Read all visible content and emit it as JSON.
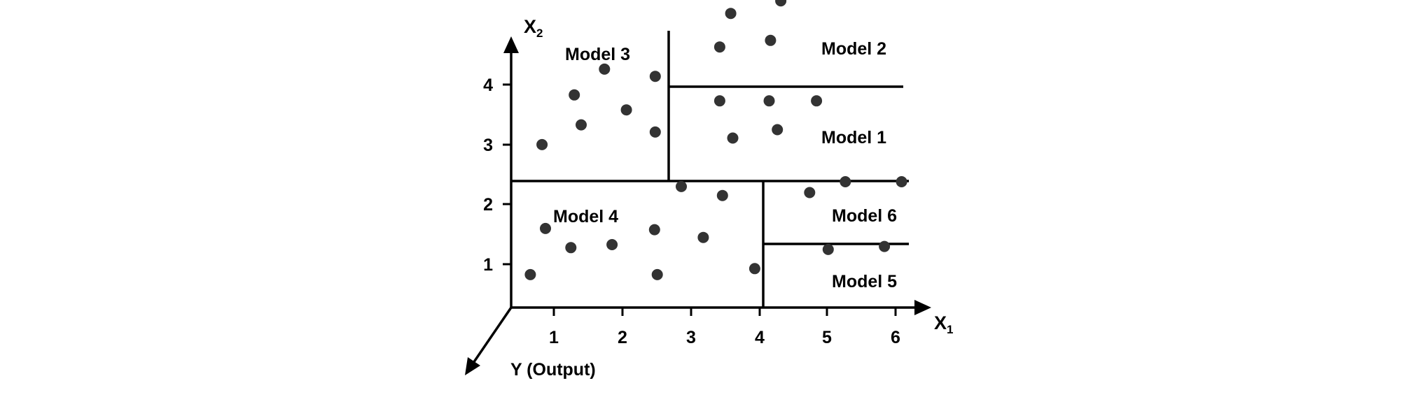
{
  "axes": {
    "x1_label": "X",
    "x1_subscript": "1",
    "x2_label": "X",
    "x2_subscript": "2",
    "y_label": "Y (Output)",
    "x1_ticks": [
      "1",
      "2",
      "3",
      "4",
      "5",
      "6"
    ],
    "x2_ticks": [
      "1",
      "2",
      "3",
      "4"
    ]
  },
  "regions": [
    {
      "label": "Model 1",
      "x1_range": [
        2.65,
        6.2
      ],
      "x2_range": [
        2.4,
        3.95
      ]
    },
    {
      "label": "Model 2",
      "x1_range": [
        2.65,
        6.2
      ],
      "x2_range": [
        3.95,
        5.0
      ]
    },
    {
      "label": "Model 3",
      "x1_range": [
        0.0,
        2.65
      ],
      "x2_range": [
        2.4,
        5.0
      ]
    },
    {
      "label": "Model 4",
      "x1_range": [
        0.0,
        4.05
      ],
      "x2_range": [
        0.0,
        2.4
      ]
    },
    {
      "label": "Model 5",
      "x1_range": [
        4.05,
        6.2
      ],
      "x2_range": [
        0.0,
        1.3
      ]
    },
    {
      "label": "Model 6",
      "x1_range": [
        4.05,
        6.2
      ],
      "x2_range": [
        1.3,
        2.4
      ]
    }
  ],
  "points": [
    [
      0.45,
      2.72
    ],
    [
      0.92,
      3.55
    ],
    [
      1.36,
      3.98
    ],
    [
      1.68,
      3.3
    ],
    [
      2.1,
      3.86
    ],
    [
      1.02,
      3.05
    ],
    [
      2.1,
      2.93
    ],
    [
      3.04,
      4.35
    ],
    [
      3.2,
      4.91
    ],
    [
      3.78,
      4.46
    ],
    [
      3.93,
      5.12
    ],
    [
      3.04,
      3.45
    ],
    [
      3.76,
      3.45
    ],
    [
      4.45,
      3.45
    ],
    [
      3.23,
      2.83
    ],
    [
      3.88,
      2.97
    ],
    [
      0.5,
      1.32
    ],
    [
      0.87,
      1.0
    ],
    [
      1.47,
      1.05
    ],
    [
      2.09,
      1.3
    ],
    [
      2.8,
      1.17
    ],
    [
      0.28,
      0.55
    ],
    [
      2.13,
      0.55
    ],
    [
      2.48,
      2.02
    ],
    [
      3.08,
      1.87
    ],
    [
      3.55,
      0.65
    ],
    [
      4.35,
      1.92
    ],
    [
      4.87,
      2.1
    ],
    [
      5.69,
      2.1
    ],
    [
      4.62,
      0.97
    ],
    [
      5.44,
      1.02
    ]
  ],
  "colors": {
    "axis": "#000000",
    "boundary": "#000000",
    "point": "#333333"
  }
}
